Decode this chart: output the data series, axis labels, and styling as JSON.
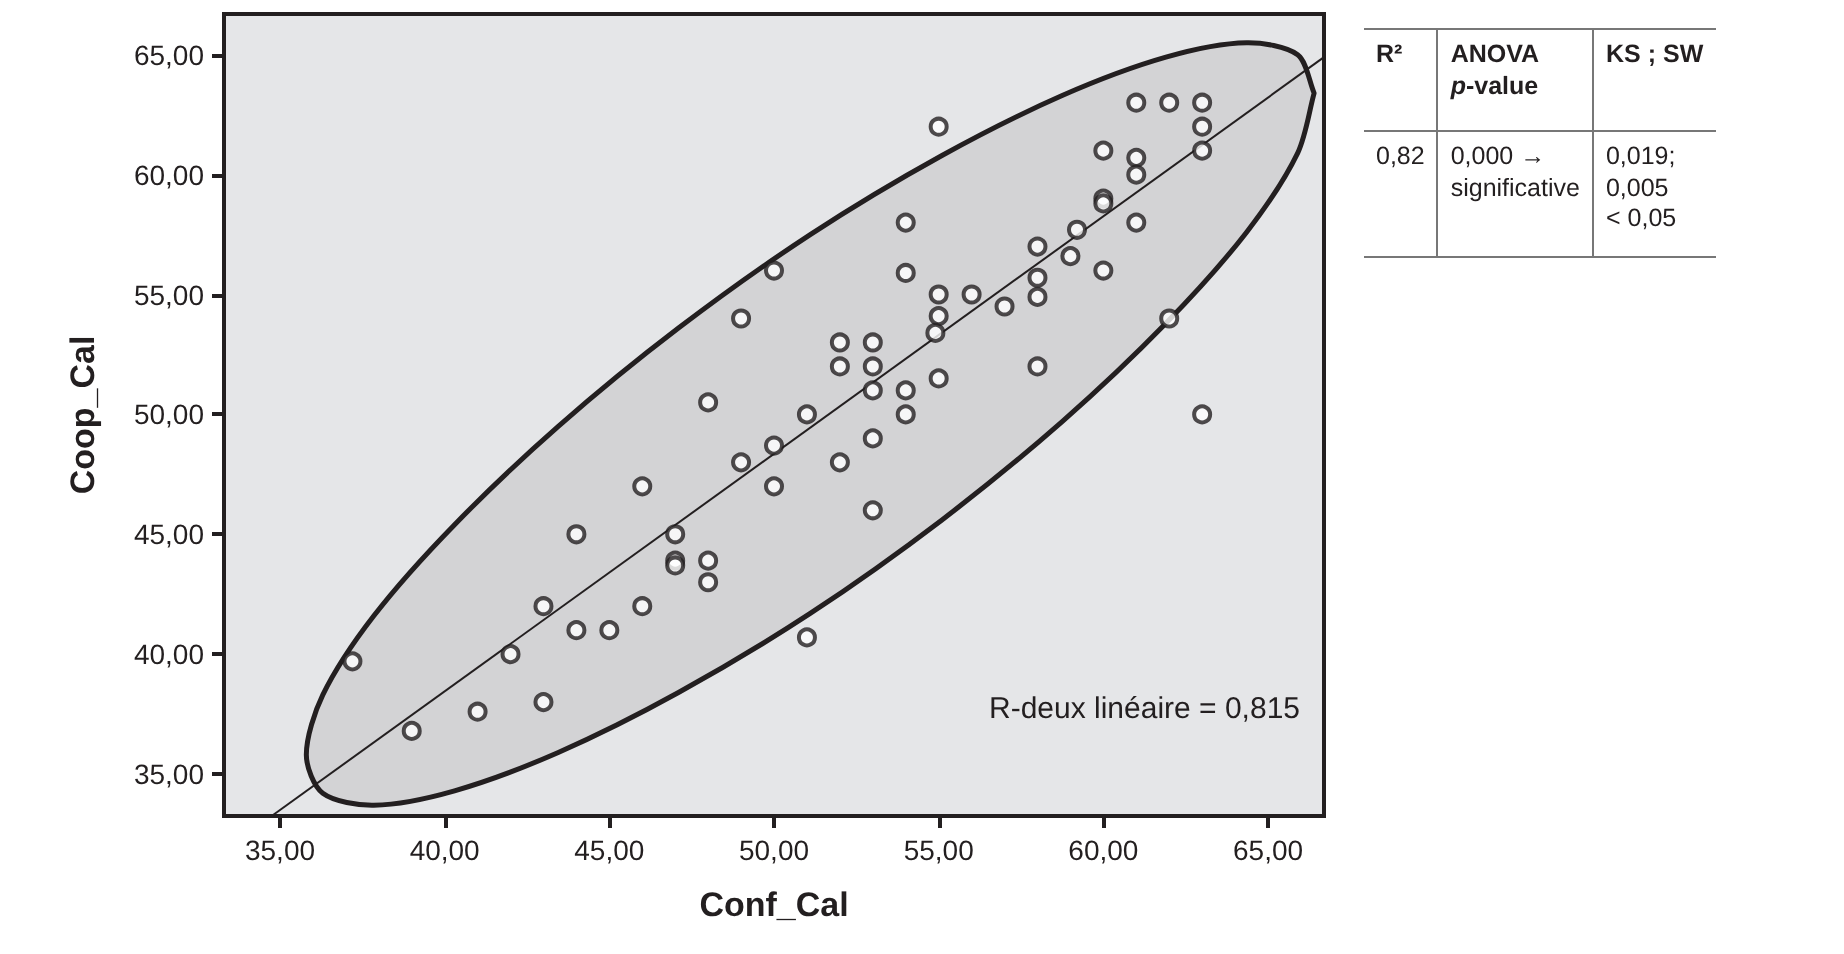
{
  "chart_data": {
    "type": "scatter",
    "xlabel": "Conf_Cal",
    "ylabel": "Coop_Cal",
    "xlim": [
      33.3,
      66.7
    ],
    "ylim": [
      33.25,
      66.7
    ],
    "xticks": [
      {
        "value": 35,
        "label": "35,00"
      },
      {
        "value": 40,
        "label": "40,00"
      },
      {
        "value": 45,
        "label": "45,00"
      },
      {
        "value": 50,
        "label": "50,00"
      },
      {
        "value": 55,
        "label": "55,00"
      },
      {
        "value": 60,
        "label": "60,00"
      },
      {
        "value": 65,
        "label": "65,00"
      }
    ],
    "yticks": [
      {
        "value": 35,
        "label": "35,00"
      },
      {
        "value": 40,
        "label": "40,00"
      },
      {
        "value": 45,
        "label": "45,00"
      },
      {
        "value": 50,
        "label": "50,00"
      },
      {
        "value": 55,
        "label": "55,00"
      },
      {
        "value": 60,
        "label": "60,00"
      },
      {
        "value": 65,
        "label": "65,00"
      }
    ],
    "grid": false,
    "series": [
      {
        "type": "area",
        "color": "#231f20",
        "x": [
          66.4,
          65.9,
          64.35,
          61.9,
          58.75,
          55.1,
          51.1,
          47.1,
          43.45,
          40.3,
          37.85,
          36.3,
          35.8,
          36.3,
          37.85,
          40.3,
          43.45,
          47.1,
          51.1,
          55.1,
          58.75,
          61.9,
          64.35,
          65.9,
          66.4
        ],
        "values": [
          63.4,
          65.0,
          65.5,
          64.9,
          63.3,
          60.8,
          57.5,
          53.6,
          49.5,
          45.4,
          41.6,
          38.3,
          35.8,
          34.2,
          33.7,
          34.3,
          35.9,
          38.4,
          41.7,
          45.6,
          49.7,
          53.8,
          57.6,
          60.9,
          63.4
        ]
      },
      {
        "type": "line",
        "marker": "none",
        "color": "#231f20",
        "x": [
          34.8,
          66.7
        ],
        "values": [
          33.3,
          64.9
        ]
      },
      {
        "marker": "circle",
        "color": "#231f20",
        "x": [
          37.2,
          39,
          41,
          43,
          42,
          43,
          44,
          45,
          44,
          46,
          46,
          47,
          47,
          47,
          48,
          48,
          49,
          55,
          61,
          62,
          63,
          63,
          63,
          60,
          61,
          61,
          60,
          60,
          61,
          59.2,
          58,
          59,
          60,
          58,
          58,
          57,
          56,
          55,
          55,
          54.9,
          54,
          54,
          50,
          49,
          52,
          53,
          52,
          53,
          53,
          54,
          55,
          54,
          53,
          52,
          51,
          50,
          58,
          62,
          63,
          48,
          50,
          53,
          51
        ],
        "values": [
          39.7,
          36.8,
          37.6,
          38,
          40,
          42,
          41,
          41,
          45,
          42,
          47,
          45,
          43.9,
          43.7,
          43.9,
          43,
          48,
          62,
          63,
          63,
          63,
          62,
          61,
          61,
          60.7,
          60,
          59,
          58.8,
          58,
          57.7,
          57,
          56.6,
          56,
          55.7,
          54.9,
          54.5,
          55,
          55,
          54.1,
          53.4,
          58,
          55.9,
          56,
          54,
          53,
          53,
          52,
          52,
          51,
          51,
          51.5,
          50,
          49,
          48,
          50,
          48.7,
          52,
          54,
          50,
          50.5,
          47,
          46,
          40.7
        ]
      }
    ],
    "annotations": [
      "R-deux linéaire = 0,815",
      "R²",
      "ANOVA p-value",
      "KS ; SW",
      "0,82",
      "0,000 → significative",
      "0,019; 0,005 < 0,05"
    ]
  }
}
